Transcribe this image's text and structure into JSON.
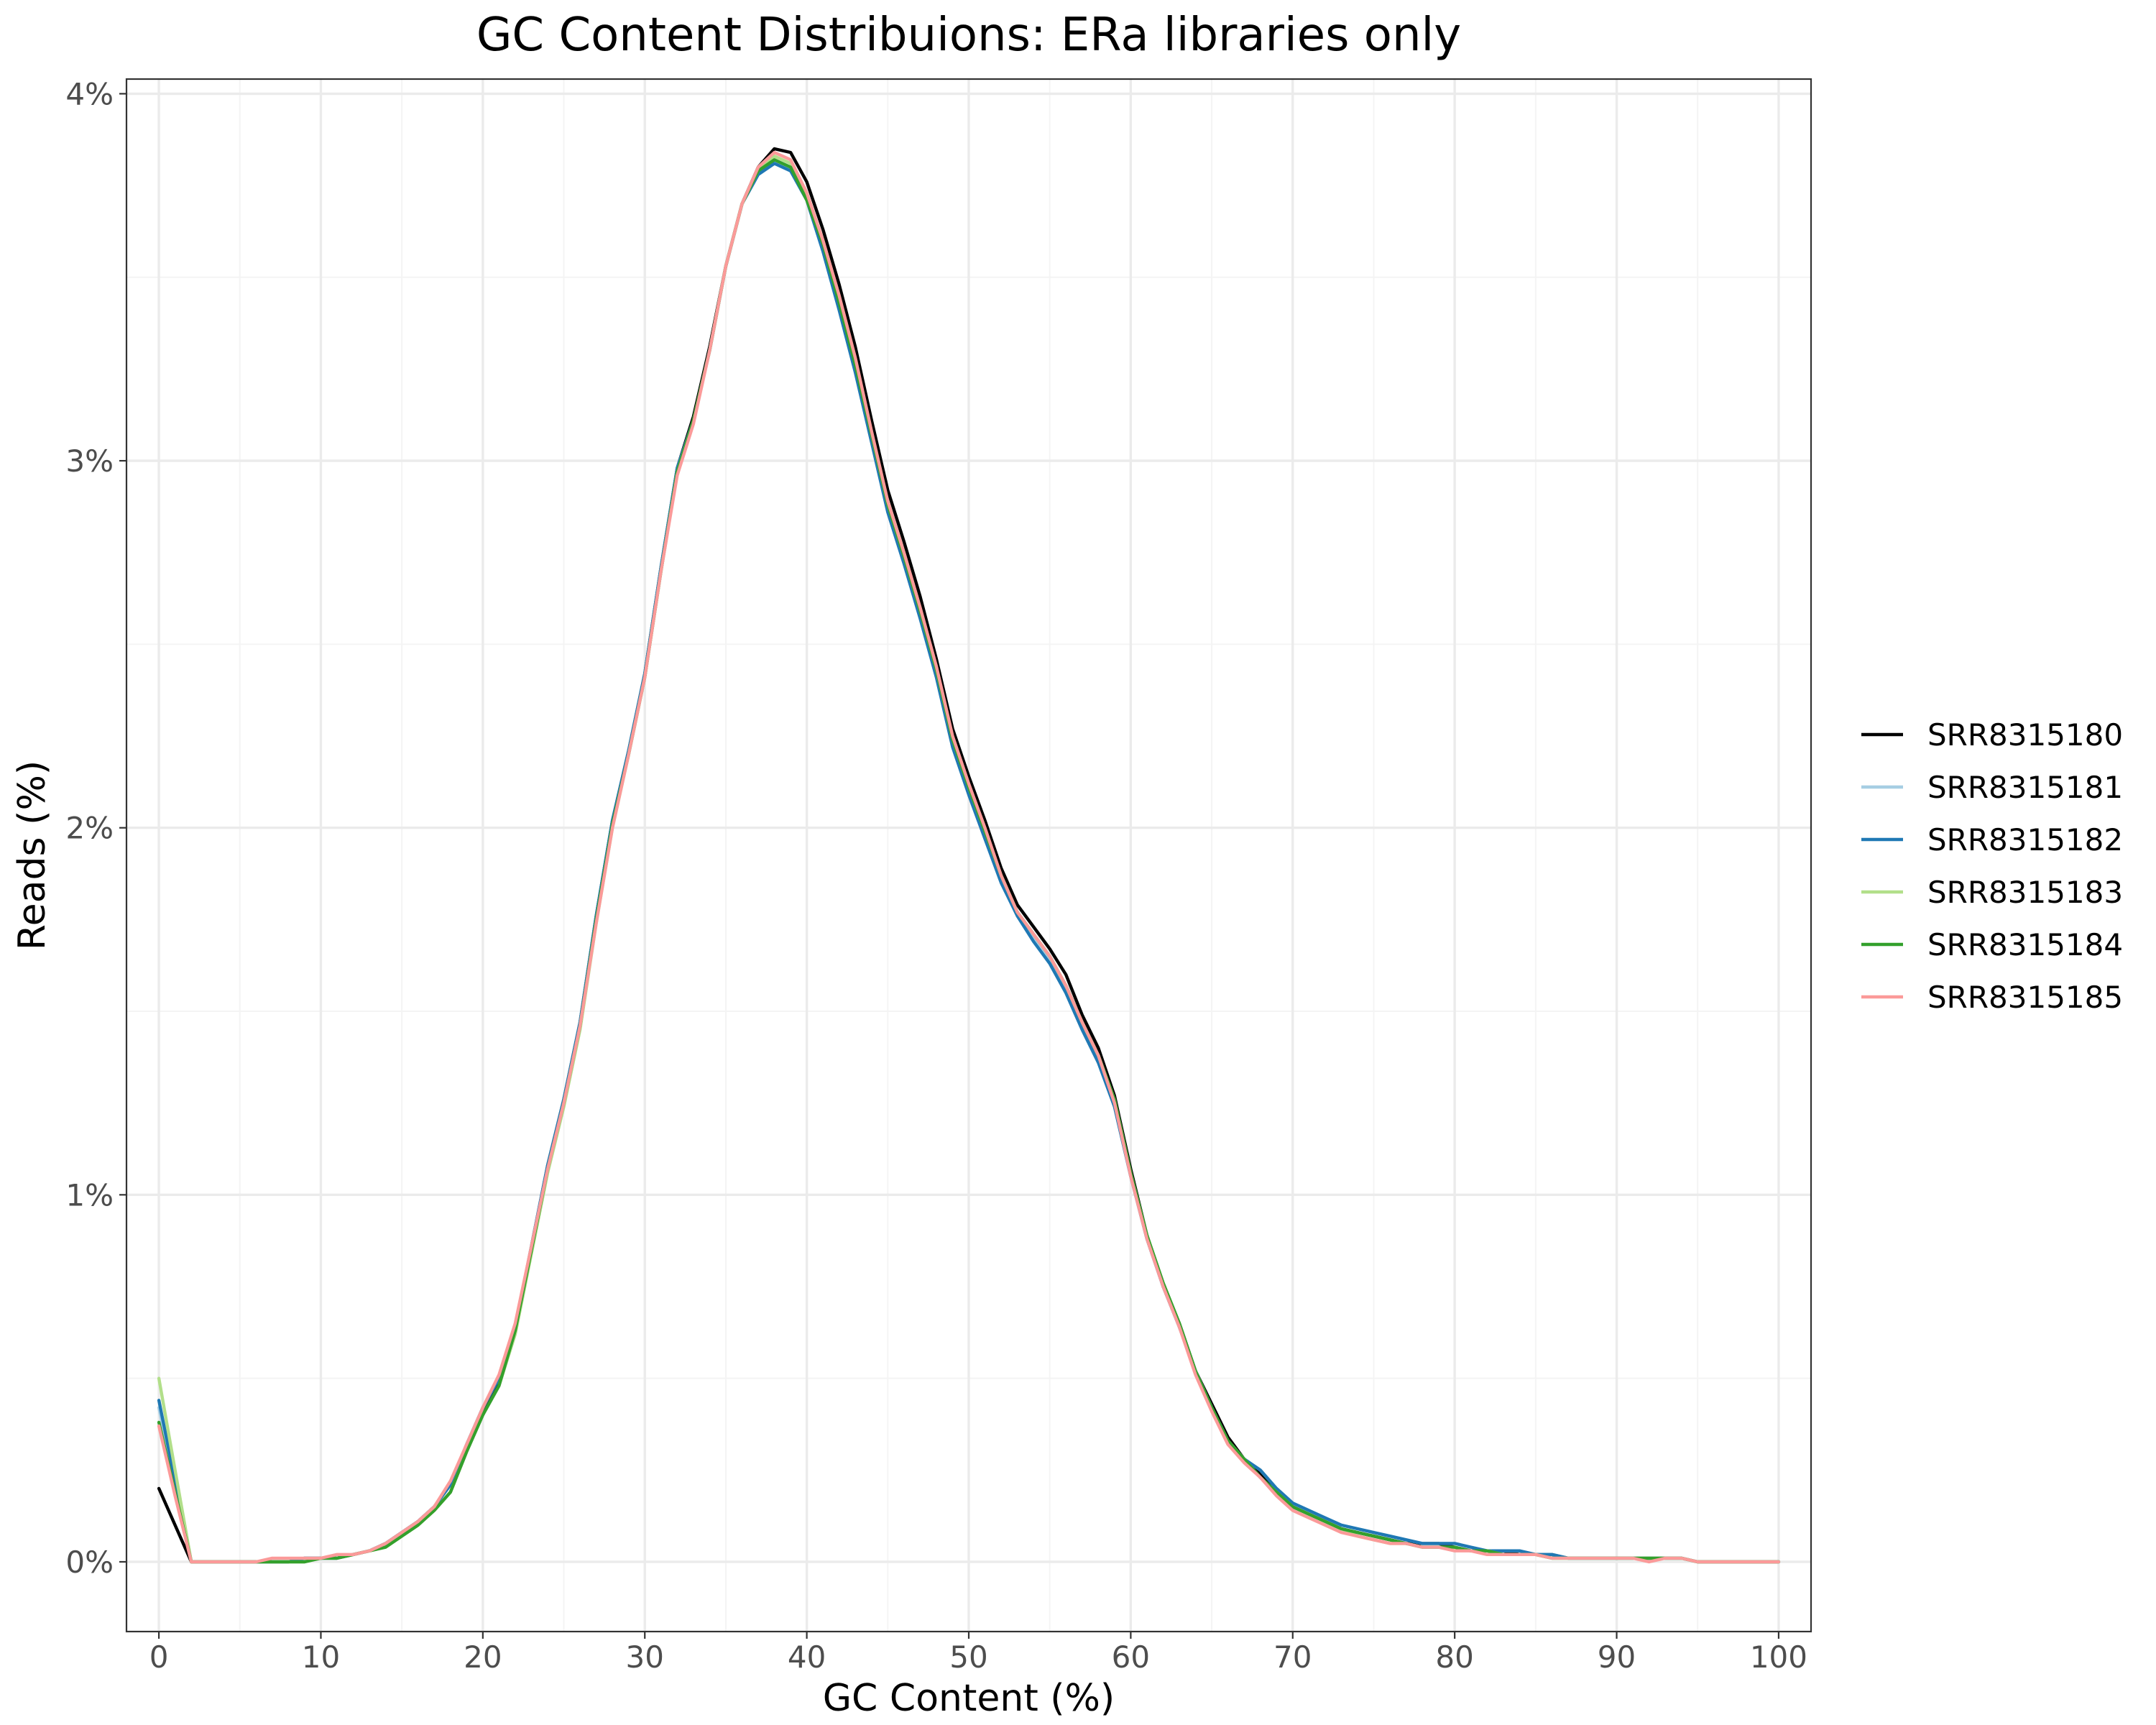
{
  "chart_data": {
    "type": "line",
    "title": "GC Content Distribuions: ERa libraries only",
    "xlabel": "GC Content (%)",
    "ylabel": "Reads (%)",
    "xlim": [
      -2,
      102
    ],
    "ylim": [
      -0.19,
      4.04
    ],
    "x_ticks": [
      0,
      10,
      20,
      30,
      40,
      50,
      60,
      70,
      80,
      90,
      100
    ],
    "y_ticks": [
      0,
      1,
      2,
      3,
      4
    ],
    "y_tick_labels": [
      "0%",
      "1%",
      "2%",
      "3%",
      "4%"
    ],
    "grid": true,
    "legend_position": "right",
    "x": [
      0,
      1,
      2,
      3,
      4,
      5,
      6,
      7,
      8,
      9,
      10,
      11,
      12,
      13,
      14,
      15,
      16,
      17,
      18,
      19,
      20,
      21,
      22,
      23,
      24,
      25,
      26,
      27,
      28,
      29,
      30,
      31,
      32,
      33,
      34,
      35,
      36,
      37,
      38,
      39,
      40,
      41,
      42,
      43,
      44,
      45,
      46,
      47,
      48,
      49,
      50,
      51,
      52,
      53,
      54,
      55,
      56,
      57,
      58,
      59,
      60,
      61,
      62,
      63,
      64,
      65,
      66,
      67,
      68,
      69,
      70,
      71,
      72,
      73,
      74,
      75,
      76,
      77,
      78,
      79,
      80,
      81,
      82,
      83,
      84,
      85,
      86,
      87,
      88,
      89,
      90,
      91,
      92,
      93,
      94,
      95,
      96,
      97,
      98,
      99,
      100
    ],
    "series": [
      {
        "name": "SRR8315180",
        "color": "#000000",
        "values": [
          0.2,
          0.1,
          0.0,
          0.0,
          0.0,
          0.0,
          0.0,
          0.0,
          0.0,
          0.01,
          0.01,
          0.01,
          0.02,
          0.03,
          0.05,
          0.08,
          0.11,
          0.15,
          0.21,
          0.31,
          0.4,
          0.49,
          0.64,
          0.86,
          1.08,
          1.26,
          1.47,
          1.76,
          2.02,
          2.21,
          2.42,
          2.71,
          2.98,
          3.12,
          3.31,
          3.53,
          3.7,
          3.8,
          3.85,
          3.84,
          3.76,
          3.63,
          3.48,
          3.31,
          3.11,
          2.92,
          2.78,
          2.63,
          2.46,
          2.27,
          2.14,
          2.02,
          1.89,
          1.79,
          1.73,
          1.67,
          1.6,
          1.49,
          1.4,
          1.27,
          1.07,
          0.89,
          0.75,
          0.65,
          0.52,
          0.43,
          0.34,
          0.28,
          0.24,
          0.19,
          0.15,
          0.13,
          0.11,
          0.09,
          0.08,
          0.07,
          0.06,
          0.05,
          0.05,
          0.05,
          0.04,
          0.03,
          0.03,
          0.03,
          0.02,
          0.02,
          0.02,
          0.01,
          0.01,
          0.01,
          0.01,
          0.01,
          0.01,
          0.01,
          0.01,
          0.0,
          0.0,
          0.0,
          0.0,
          0.0,
          0.0
        ]
      },
      {
        "name": "SRR8315181",
        "color": "#a6cee3",
        "values": [
          0.42,
          0.21,
          0.0,
          0.0,
          0.0,
          0.0,
          0.0,
          0.0,
          0.0,
          0.01,
          0.01,
          0.01,
          0.02,
          0.03,
          0.05,
          0.08,
          0.11,
          0.15,
          0.21,
          0.32,
          0.42,
          0.5,
          0.64,
          0.86,
          1.08,
          1.26,
          1.47,
          1.76,
          2.02,
          2.21,
          2.42,
          2.71,
          2.98,
          3.11,
          3.3,
          3.53,
          3.7,
          3.78,
          3.81,
          3.8,
          3.72,
          3.58,
          3.42,
          3.25,
          3.06,
          2.87,
          2.73,
          2.58,
          2.42,
          2.23,
          2.1,
          1.98,
          1.86,
          1.76,
          1.7,
          1.64,
          1.56,
          1.46,
          1.37,
          1.24,
          1.05,
          0.88,
          0.75,
          0.64,
          0.52,
          0.42,
          0.33,
          0.28,
          0.25,
          0.2,
          0.16,
          0.14,
          0.12,
          0.1,
          0.09,
          0.08,
          0.07,
          0.06,
          0.05,
          0.05,
          0.05,
          0.04,
          0.03,
          0.03,
          0.03,
          0.02,
          0.02,
          0.01,
          0.01,
          0.01,
          0.01,
          0.01,
          0.01,
          0.01,
          0.01,
          0.0,
          0.0,
          0.0,
          0.0,
          0.0,
          0.0
        ]
      },
      {
        "name": "SRR8315182",
        "color": "#1f78b4",
        "values": [
          0.44,
          0.22,
          0.0,
          0.0,
          0.0,
          0.0,
          0.0,
          0.0,
          0.0,
          0.01,
          0.01,
          0.01,
          0.02,
          0.03,
          0.05,
          0.08,
          0.11,
          0.15,
          0.21,
          0.32,
          0.42,
          0.5,
          0.64,
          0.86,
          1.08,
          1.26,
          1.47,
          1.76,
          2.02,
          2.21,
          2.42,
          2.71,
          2.98,
          3.11,
          3.3,
          3.53,
          3.7,
          3.78,
          3.81,
          3.79,
          3.71,
          3.57,
          3.41,
          3.24,
          3.05,
          2.86,
          2.72,
          2.57,
          2.41,
          2.22,
          2.09,
          1.97,
          1.85,
          1.76,
          1.69,
          1.63,
          1.55,
          1.45,
          1.36,
          1.24,
          1.05,
          0.88,
          0.75,
          0.64,
          0.52,
          0.42,
          0.33,
          0.28,
          0.25,
          0.2,
          0.16,
          0.14,
          0.12,
          0.1,
          0.09,
          0.08,
          0.07,
          0.06,
          0.05,
          0.05,
          0.05,
          0.04,
          0.03,
          0.03,
          0.03,
          0.02,
          0.02,
          0.01,
          0.01,
          0.01,
          0.01,
          0.01,
          0.01,
          0.01,
          0.01,
          0.0,
          0.0,
          0.0,
          0.0,
          0.0,
          0.0
        ]
      },
      {
        "name": "SRR8315183",
        "color": "#b2df8a",
        "values": [
          0.5,
          0.25,
          0.0,
          0.0,
          0.0,
          0.0,
          0.0,
          0.0,
          0.0,
          0.0,
          0.01,
          0.01,
          0.02,
          0.03,
          0.04,
          0.07,
          0.1,
          0.14,
          0.19,
          0.3,
          0.4,
          0.48,
          0.62,
          0.84,
          1.06,
          1.24,
          1.45,
          1.74,
          2.0,
          2.2,
          2.41,
          2.7,
          2.97,
          3.11,
          3.3,
          3.53,
          3.7,
          3.79,
          3.83,
          3.81,
          3.72,
          3.6,
          3.44,
          3.27,
          3.07,
          2.88,
          2.74,
          2.59,
          2.43,
          2.24,
          2.11,
          1.99,
          1.87,
          1.77,
          1.71,
          1.65,
          1.57,
          1.47,
          1.38,
          1.26,
          1.06,
          0.89,
          0.76,
          0.65,
          0.52,
          0.42,
          0.33,
          0.28,
          0.23,
          0.19,
          0.15,
          0.13,
          0.11,
          0.09,
          0.07,
          0.06,
          0.05,
          0.05,
          0.04,
          0.04,
          0.04,
          0.03,
          0.03,
          0.02,
          0.02,
          0.02,
          0.01,
          0.01,
          0.01,
          0.01,
          0.01,
          0.01,
          0.01,
          0.01,
          0.01,
          0.0,
          0.0,
          0.0,
          0.0,
          0.0,
          0.0
        ]
      },
      {
        "name": "SRR8315184",
        "color": "#33a02c",
        "values": [
          0.38,
          0.19,
          0.0,
          0.0,
          0.0,
          0.0,
          0.0,
          0.0,
          0.0,
          0.0,
          0.01,
          0.01,
          0.02,
          0.03,
          0.04,
          0.07,
          0.1,
          0.14,
          0.19,
          0.3,
          0.4,
          0.48,
          0.63,
          0.85,
          1.07,
          1.25,
          1.46,
          1.75,
          2.01,
          2.2,
          2.41,
          2.7,
          2.97,
          3.11,
          3.3,
          3.53,
          3.7,
          3.79,
          3.82,
          3.8,
          3.71,
          3.59,
          3.43,
          3.26,
          3.07,
          2.88,
          2.74,
          2.59,
          2.43,
          2.24,
          2.11,
          1.99,
          1.87,
          1.77,
          1.71,
          1.65,
          1.57,
          1.47,
          1.38,
          1.26,
          1.06,
          0.89,
          0.76,
          0.65,
          0.52,
          0.42,
          0.33,
          0.28,
          0.23,
          0.19,
          0.15,
          0.13,
          0.11,
          0.09,
          0.08,
          0.07,
          0.06,
          0.05,
          0.04,
          0.04,
          0.04,
          0.03,
          0.03,
          0.02,
          0.02,
          0.02,
          0.01,
          0.01,
          0.01,
          0.01,
          0.01,
          0.01,
          0.01,
          0.01,
          0.01,
          0.0,
          0.0,
          0.0,
          0.0,
          0.0,
          0.0
        ]
      },
      {
        "name": "SRR8315185",
        "color": "#fb9a99",
        "values": [
          0.37,
          0.18,
          0.0,
          0.0,
          0.0,
          0.0,
          0.0,
          0.01,
          0.01,
          0.01,
          0.01,
          0.02,
          0.02,
          0.03,
          0.05,
          0.08,
          0.11,
          0.15,
          0.22,
          0.32,
          0.42,
          0.51,
          0.65,
          0.86,
          1.07,
          1.25,
          1.46,
          1.74,
          2.0,
          2.2,
          2.41,
          2.7,
          2.96,
          3.1,
          3.3,
          3.53,
          3.7,
          3.8,
          3.84,
          3.82,
          3.73,
          3.6,
          3.45,
          3.28,
          3.08,
          2.89,
          2.75,
          2.6,
          2.44,
          2.25,
          2.12,
          2.0,
          1.87,
          1.77,
          1.71,
          1.65,
          1.57,
          1.47,
          1.38,
          1.25,
          1.05,
          0.88,
          0.75,
          0.64,
          0.51,
          0.41,
          0.32,
          0.27,
          0.23,
          0.18,
          0.14,
          0.12,
          0.1,
          0.08,
          0.07,
          0.06,
          0.05,
          0.05,
          0.04,
          0.04,
          0.03,
          0.03,
          0.02,
          0.02,
          0.02,
          0.02,
          0.01,
          0.01,
          0.01,
          0.01,
          0.01,
          0.01,
          0.0,
          0.01,
          0.01,
          0.0,
          0.0,
          0.0,
          0.0,
          0.0,
          0.0
        ]
      }
    ]
  }
}
